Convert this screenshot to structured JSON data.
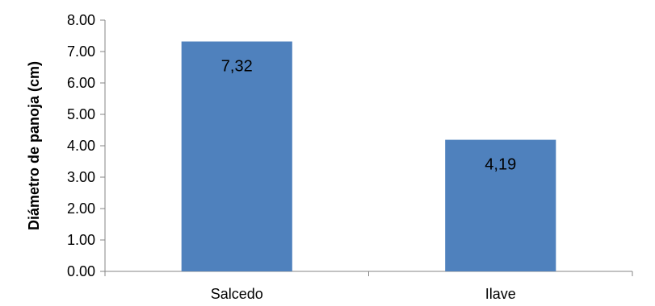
{
  "chart_data": {
    "type": "bar",
    "title": "",
    "xlabel": "",
    "ylabel": "Diámetro de panoja (cm)",
    "categories": [
      "Salcedo",
      "Ilave"
    ],
    "values": [
      7.32,
      4.19
    ],
    "data_labels": [
      "7,32",
      "4,19"
    ],
    "y_ticks": [
      "0.00",
      "1.00",
      "2.00",
      "3.00",
      "4.00",
      "5.00",
      "6.00",
      "7.00",
      "8.00"
    ],
    "ylim": [
      0,
      8
    ],
    "grid": false,
    "legend": "none",
    "bar_color": "#4F81BD",
    "axis_color": "#868686"
  }
}
